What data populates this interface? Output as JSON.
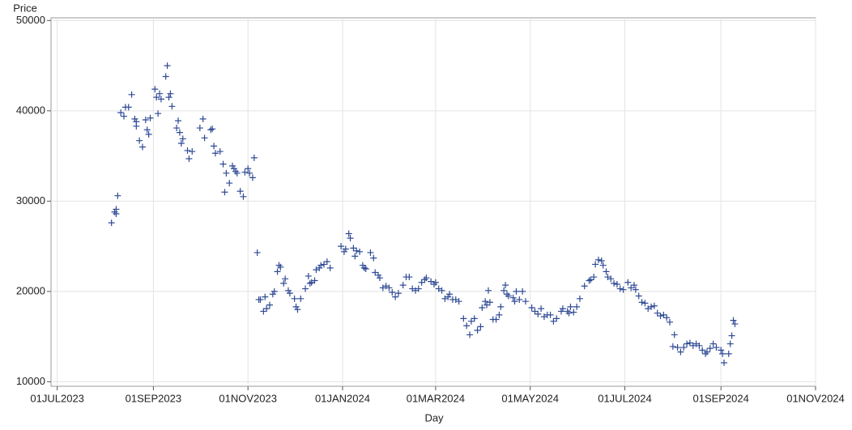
{
  "chart_data": {
    "type": "scatter",
    "x_label": "Day",
    "y_label": "Price",
    "color": "#2f4a94",
    "grid": true,
    "xlim": [
      "2023-06-27",
      "2024-11-01"
    ],
    "xticks": [
      {
        "value": "2023-07-01",
        "label": "01JUL2023"
      },
      {
        "value": "2023-09-01",
        "label": "01SEP2023"
      },
      {
        "value": "2023-11-01",
        "label": "01NOV2023"
      },
      {
        "value": "2024-01-01",
        "label": "01JAN2024"
      },
      {
        "value": "2024-03-01",
        "label": "01MAR2024"
      },
      {
        "value": "2024-05-01",
        "label": "01MAY2024"
      },
      {
        "value": "2024-07-01",
        "label": "01JUL2024"
      },
      {
        "value": "2024-09-01",
        "label": "01SEP2024"
      },
      {
        "value": "2024-11-01",
        "label": "01NOV2024"
      }
    ],
    "ylim": [
      9500,
      50300
    ],
    "yticks": [
      10000,
      20000,
      30000,
      40000,
      50000
    ],
    "x": [
      "2023-08-05",
      "2023-08-07",
      "2023-08-08",
      "2023-08-08",
      "2023-08-09",
      "2023-08-11",
      "2023-08-13",
      "2023-08-14",
      "2023-08-16",
      "2023-08-18",
      "2023-08-20",
      "2023-08-21",
      "2023-08-21",
      "2023-08-23",
      "2023-08-25",
      "2023-08-27",
      "2023-08-28",
      "2023-08-29",
      "2023-08-30",
      "2023-09-02",
      "2023-09-03",
      "2023-09-04",
      "2023-09-05",
      "2023-09-06",
      "2023-09-09",
      "2023-09-10",
      "2023-09-11",
      "2023-09-12",
      "2023-09-13",
      "2023-09-16",
      "2023-09-17",
      "2023-09-18",
      "2023-09-19",
      "2023-09-20",
      "2023-09-23",
      "2023-09-24",
      "2023-09-26",
      "2023-10-01",
      "2023-10-03",
      "2023-10-04",
      "2023-10-08",
      "2023-10-09",
      "2023-10-10",
      "2023-10-11",
      "2023-10-14",
      "2023-10-16",
      "2023-10-17",
      "2023-10-18",
      "2023-10-20",
      "2023-10-22",
      "2023-10-23",
      "2023-10-24",
      "2023-10-25",
      "2023-10-27",
      "2023-10-29",
      "2023-10-30",
      "2023-11-01",
      "2023-11-02",
      "2023-11-04",
      "2023-11-05",
      "2023-11-07",
      "2023-11-08",
      "2023-11-09",
      "2023-11-11",
      "2023-11-12",
      "2023-11-13",
      "2023-11-15",
      "2023-11-17",
      "2023-11-18",
      "2023-11-20",
      "2023-11-21",
      "2023-11-22",
      "2023-11-24",
      "2023-11-25",
      "2023-11-27",
      "2023-11-28",
      "2023-12-01",
      "2023-12-02",
      "2023-12-03",
      "2023-12-05",
      "2023-12-08",
      "2023-12-10",
      "2023-12-11",
      "2023-12-12",
      "2023-12-14",
      "2023-12-15",
      "2023-12-17",
      "2023-12-18",
      "2023-12-20",
      "2023-12-22",
      "2023-12-24",
      "2023-12-31",
      "2024-01-02",
      "2024-01-03",
      "2024-01-05",
      "2024-01-06",
      "2024-01-08",
      "2024-01-09",
      "2024-01-10",
      "2024-01-12",
      "2024-01-14",
      "2024-01-15",
      "2024-01-16",
      "2024-01-19",
      "2024-01-21",
      "2024-01-22",
      "2024-01-24",
      "2024-01-25",
      "2024-01-27",
      "2024-01-29",
      "2024-01-31",
      "2024-02-02",
      "2024-02-04",
      "2024-02-06",
      "2024-02-09",
      "2024-02-11",
      "2024-02-13",
      "2024-02-15",
      "2024-02-17",
      "2024-02-19",
      "2024-02-21",
      "2024-02-23",
      "2024-02-24",
      "2024-02-27",
      "2024-02-29",
      "2024-03-01",
      "2024-03-03",
      "2024-03-05",
      "2024-03-07",
      "2024-03-09",
      "2024-03-10",
      "2024-03-12",
      "2024-03-14",
      "2024-03-16",
      "2024-03-19",
      "2024-03-21",
      "2024-03-23",
      "2024-03-24",
      "2024-03-26",
      "2024-03-28",
      "2024-03-30",
      "2024-03-31",
      "2024-04-02",
      "2024-04-03",
      "2024-04-04",
      "2024-04-05",
      "2024-04-07",
      "2024-04-09",
      "2024-04-11",
      "2024-04-12",
      "2024-04-14",
      "2024-04-15",
      "2024-04-16",
      "2024-04-17",
      "2024-04-20",
      "2024-04-21",
      "2024-04-22",
      "2024-04-24",
      "2024-04-26",
      "2024-04-28",
      "2024-05-02",
      "2024-05-04",
      "2024-05-06",
      "2024-05-08",
      "2024-05-10",
      "2024-05-12",
      "2024-05-14",
      "2024-05-16",
      "2024-05-18",
      "2024-05-21",
      "2024-05-22",
      "2024-05-25",
      "2024-05-26",
      "2024-05-27",
      "2024-05-29",
      "2024-05-31",
      "2024-06-02",
      "2024-06-05",
      "2024-06-08",
      "2024-06-09",
      "2024-06-11",
      "2024-06-12",
      "2024-06-14",
      "2024-06-16",
      "2024-06-17",
      "2024-06-19",
      "2024-06-20",
      "2024-06-22",
      "2024-06-24",
      "2024-06-26",
      "2024-06-28",
      "2024-06-30",
      "2024-07-03",
      "2024-07-05",
      "2024-07-07",
      "2024-07-08",
      "2024-07-10",
      "2024-07-12",
      "2024-07-14",
      "2024-07-16",
      "2024-07-18",
      "2024-07-20",
      "2024-07-22",
      "2024-07-24",
      "2024-07-26",
      "2024-07-28",
      "2024-07-30",
      "2024-08-01",
      "2024-08-02",
      "2024-08-04",
      "2024-08-06",
      "2024-08-08",
      "2024-08-10",
      "2024-08-12",
      "2024-08-14",
      "2024-08-16",
      "2024-08-18",
      "2024-08-20",
      "2024-08-22",
      "2024-08-23",
      "2024-08-25",
      "2024-08-27",
      "2024-08-29",
      "2024-09-01",
      "2024-09-02",
      "2024-09-03",
      "2024-09-06",
      "2024-09-07",
      "2024-09-08",
      "2024-09-09",
      "2024-09-10"
    ],
    "values": [
      27600,
      28800,
      29100,
      28600,
      30600,
      39800,
      39400,
      40400,
      40400,
      41800,
      39100,
      38300,
      38800,
      36700,
      36000,
      39000,
      37900,
      37400,
      39200,
      42400,
      41500,
      39700,
      41900,
      41300,
      43800,
      45000,
      41500,
      41900,
      40500,
      38100,
      38900,
      37600,
      36400,
      36900,
      35600,
      34700,
      35500,
      38100,
      39100,
      37000,
      37900,
      38000,
      36100,
      35300,
      35500,
      34100,
      31000,
      33100,
      32000,
      33900,
      33600,
      33300,
      33100,
      31100,
      30500,
      33200,
      33600,
      33100,
      32600,
      34800,
      24300,
      19100,
      19100,
      17800,
      19400,
      18100,
      18500,
      19700,
      20000,
      22200,
      22900,
      22700,
      20900,
      21400,
      20100,
      19800,
      19200,
      18300,
      18000,
      19200,
      20300,
      21700,
      20900,
      21000,
      21200,
      22400,
      22600,
      22900,
      23000,
      23300,
      22600,
      25000,
      24400,
      24700,
      26400,
      25900,
      24800,
      23900,
      24500,
      24400,
      22900,
      22600,
      22500,
      24300,
      23700,
      22100,
      21800,
      21500,
      20400,
      20600,
      20400,
      19900,
      19400,
      19800,
      20700,
      21600,
      21600,
      20300,
      20100,
      20300,
      21000,
      21300,
      21500,
      21100,
      20800,
      21000,
      20300,
      20100,
      19200,
      19400,
      19700,
      19100,
      19100,
      18900,
      17000,
      16200,
      15200,
      16700,
      17000,
      15700,
      16100,
      18200,
      18900,
      18500,
      20100,
      18800,
      16900,
      16900,
      17400,
      18300,
      20100,
      20700,
      19700,
      19500,
      19300,
      18900,
      20000,
      19100,
      20000,
      18900,
      18200,
      17800,
      17500,
      18100,
      17200,
      17400,
      17400,
      16700,
      17000,
      17800,
      18100,
      17800,
      17600,
      18300,
      17700,
      18300,
      19200,
      20600,
      21200,
      21300,
      21600,
      23000,
      23500,
      23400,
      22900,
      22200,
      21600,
      21400,
      20900,
      20800,
      20300,
      20200,
      21000,
      20400,
      20700,
      20200,
      19500,
      18800,
      18700,
      18100,
      18300,
      18400,
      17600,
      17300,
      17400,
      17100,
      16600,
      13900,
      15200,
      13800,
      13300,
      13800,
      14200,
      14300,
      14000,
      14200,
      14000,
      13500,
      13100,
      13300,
      13700,
      14200,
      13800,
      13500,
      13100,
      12100,
      13100,
      14200,
      15100,
      16800,
      16400
    ]
  }
}
